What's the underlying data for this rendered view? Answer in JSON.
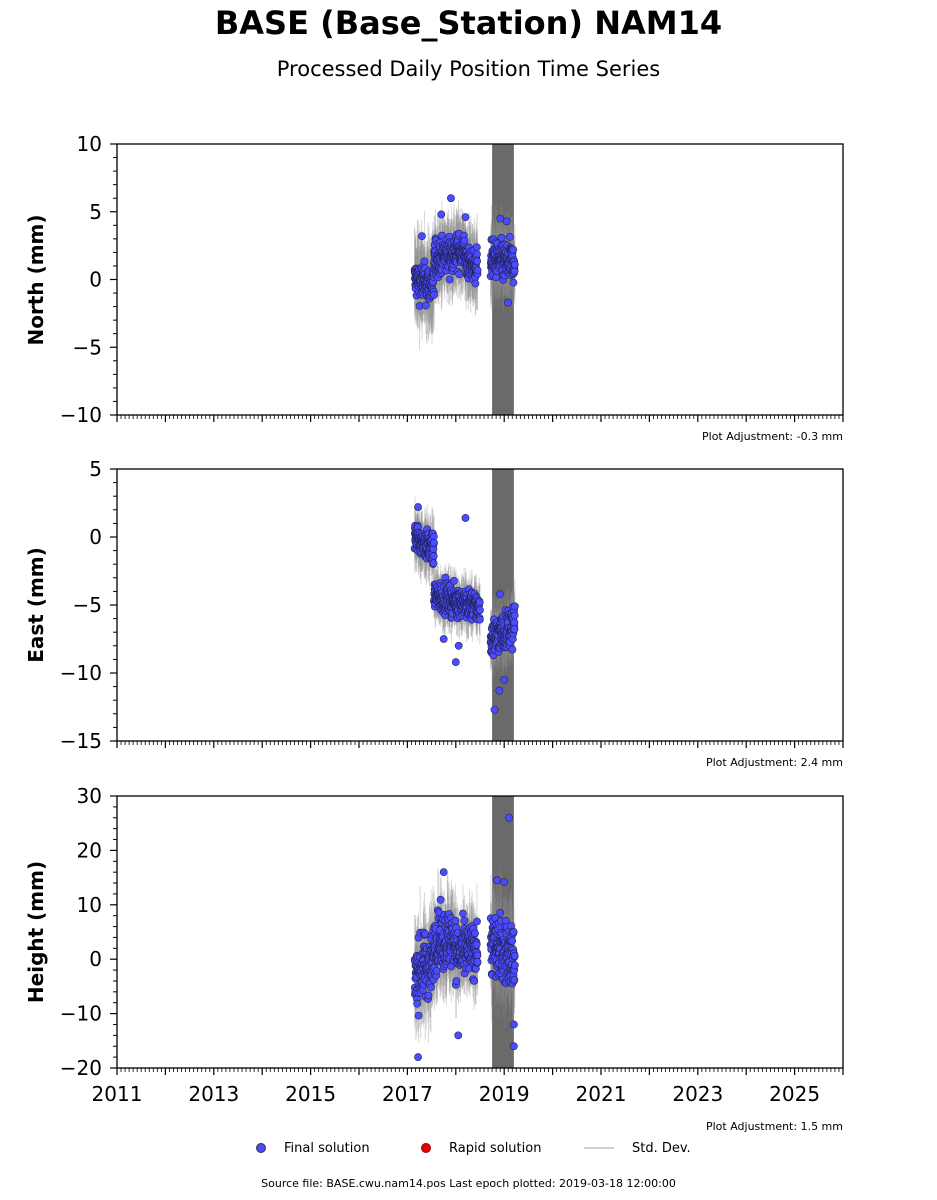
{
  "title": "BASE (Base_Station) NAM14",
  "subtitle": "Processed Daily Position Time Series",
  "legend": {
    "final": "Final solution",
    "rapid": "Rapid solution",
    "stddev": "Std. Dev.",
    "colors": {
      "final": "#4b4bff",
      "rapid": "#e00000",
      "stddev": "#c8c8c8"
    }
  },
  "footer": "Source file: BASE.cwu.nam14.pos  Last epoch plotted: 2019-03-18 12:00:00",
  "chart_data": [
    {
      "type": "scatter",
      "ylabel": "North (mm)",
      "ylim": [
        -10,
        10
      ],
      "yticks": [
        10,
        5,
        0,
        -5,
        -10
      ],
      "ytick_labels": [
        "10",
        "5",
        "0",
        "−5",
        "−10"
      ],
      "xlim": [
        2011,
        2026
      ],
      "adjustment": "Plot Adjustment: -0.3 mm",
      "gap_band": [
        2018.75,
        2019.2
      ],
      "series": [
        {
          "segments": [
            {
              "x": [
                2017.15,
                2017.55
              ],
              "center": [
                0.0,
                -0.5
              ],
              "spread": 1.2,
              "err": 2.5
            },
            {
              "x": [
                2017.55,
                2018.2
              ],
              "center": [
                1.5,
                2.2
              ],
              "spread": 1.1,
              "err": 2.0
            },
            {
              "x": [
                2018.2,
                2018.45
              ],
              "center": [
                1.2,
                1.0
              ],
              "spread": 1.0,
              "err": 2.0
            },
            {
              "x": [
                2018.72,
                2019.22
              ],
              "center": [
                1.5,
                1.2
              ],
              "spread": 1.2,
              "err": 2.0
            }
          ]
        }
      ],
      "outliers": [
        [
          2017.3,
          3.2
        ],
        [
          2017.7,
          4.8
        ],
        [
          2017.9,
          6.0
        ],
        [
          2018.2,
          4.6
        ],
        [
          2018.92,
          4.5
        ],
        [
          2019.05,
          4.3
        ],
        [
          2019.08,
          -1.7
        ]
      ]
    },
    {
      "type": "scatter",
      "ylabel": "East (mm)",
      "ylim": [
        -15,
        5
      ],
      "yticks": [
        5,
        0,
        -5,
        -10,
        -15
      ],
      "ytick_labels": [
        "5",
        "0",
        "−5",
        "−10",
        "−15"
      ],
      "xlim": [
        2011,
        2026
      ],
      "adjustment": "Plot Adjustment: 2.4 mm",
      "gap_band": [
        2018.75,
        2019.2
      ],
      "series": [
        {
          "segments": [
            {
              "x": [
                2017.15,
                2017.55
              ],
              "center": [
                0.0,
                -1.0
              ],
              "spread": 0.9,
              "err": 1.5
            },
            {
              "x": [
                2017.55,
                2018.5
              ],
              "center": [
                -4.3,
                -5.2
              ],
              "spread": 0.9,
              "err": 1.3
            },
            {
              "x": [
                2018.72,
                2019.22
              ],
              "center": [
                -7.5,
                -6.5
              ],
              "spread": 1.2,
              "err": 1.5
            }
          ]
        }
      ],
      "outliers": [
        [
          2017.22,
          2.2
        ],
        [
          2018.2,
          1.4
        ],
        [
          2018.0,
          -9.2
        ],
        [
          2018.06,
          -8.0
        ],
        [
          2017.75,
          -7.5
        ],
        [
          2018.8,
          -12.7
        ],
        [
          2018.9,
          -11.3
        ],
        [
          2019.0,
          -10.5
        ],
        [
          2018.91,
          -4.2
        ]
      ]
    },
    {
      "type": "scatter",
      "ylabel": "Height (mm)",
      "ylim": [
        -20,
        30
      ],
      "yticks": [
        30,
        20,
        10,
        0,
        -10,
        -20
      ],
      "ytick_labels": [
        "30",
        "20",
        "10",
        "0",
        "−10",
        "−20"
      ],
      "xlim": [
        2011,
        2026
      ],
      "xticks": [
        2011,
        2013,
        2015,
        2017,
        2019,
        2021,
        2023,
        2025
      ],
      "xtick_labels": [
        "2011",
        "2013",
        "2015",
        "2017",
        "2019",
        "2021",
        "2023",
        "2025"
      ],
      "adjustment": "Plot Adjustment: 1.5 mm",
      "gap_band": [
        2018.75,
        2019.2
      ],
      "series": [
        {
          "segments": [
            {
              "x": [
                2017.15,
                2017.55
              ],
              "center": [
                -3.0,
                0.0
              ],
              "spread": 5.0,
              "err": 6.0
            },
            {
              "x": [
                2017.55,
                2018.0
              ],
              "center": [
                3.0,
                4.0
              ],
              "spread": 4.5,
              "err": 6.0
            },
            {
              "x": [
                2018.0,
                2018.45
              ],
              "center": [
                1.0,
                2.0
              ],
              "spread": 4.0,
              "err": 5.0
            },
            {
              "x": [
                2018.72,
                2019.22
              ],
              "center": [
                3.0,
                0.0
              ],
              "spread": 5.0,
              "err": 6.0
            }
          ]
        }
      ],
      "outliers": [
        [
          2017.22,
          -18.0
        ],
        [
          2017.75,
          16.0
        ],
        [
          2018.05,
          -14.0
        ],
        [
          2019.1,
          26.0
        ],
        [
          2018.85,
          14.5
        ],
        [
          2019.0,
          14.2
        ],
        [
          2019.2,
          -16.0
        ],
        [
          2019.2,
          -12.0
        ]
      ]
    }
  ]
}
